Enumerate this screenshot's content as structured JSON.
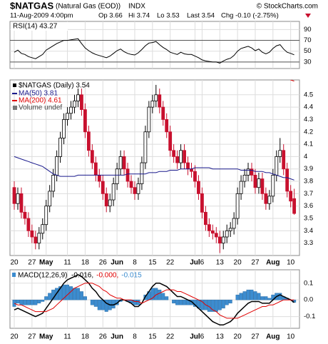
{
  "header": {
    "symbol": "$NATGAS",
    "name": "(Natural Gas (EOD))",
    "exchange": "INDX",
    "credit": "© StockCharts.com",
    "date": "11-Aug-2009 4:00pm",
    "open": "Op 3.66",
    "high": "Hi 3.74",
    "low": "Lo 3.53",
    "last": "Last 3.54",
    "change": "Chg -0.10 (-2.75%)"
  },
  "chart_data": [
    {
      "type": "line",
      "legend": "RSI(14) 43.27",
      "color": "#000000",
      "ylim": [
        18,
        105
      ],
      "yticks": [
        30,
        50,
        70,
        90
      ],
      "reference_lines": [
        30,
        70
      ],
      "values": [
        48,
        52,
        46,
        44,
        40,
        38,
        36,
        40,
        44,
        52,
        56,
        60,
        64,
        67,
        70,
        70,
        71,
        72,
        73,
        64,
        56,
        51,
        47,
        44,
        42,
        40,
        38,
        41,
        46,
        51,
        54,
        49,
        46,
        44,
        43,
        47,
        53,
        60,
        65,
        66,
        68,
        62,
        57,
        53,
        48,
        46,
        44,
        48,
        45,
        44,
        44,
        41,
        38,
        34,
        32,
        31,
        30,
        30,
        28,
        32,
        35,
        37,
        42,
        50,
        55,
        57,
        59,
        56,
        51,
        54,
        48,
        45,
        48,
        55,
        60,
        62,
        54,
        48,
        46,
        43.27
      ]
    },
    {
      "type": "candlestick",
      "legend": [
        "$NATGAS (Daily) 3.54",
        "Volume undef"
      ],
      "color_up": "#000000",
      "color_down": "#c8102e",
      "ylim": [
        3.2,
        4.62
      ],
      "yticks": [
        3.3,
        3.4,
        3.5,
        3.6,
        3.7,
        3.8,
        3.9,
        4.0,
        4.1,
        4.2,
        4.3,
        4.4,
        4.5
      ],
      "categories": [
        "20",
        null,
        null,
        null,
        null,
        "27",
        null,
        null,
        null,
        "May",
        null,
        null,
        null,
        null,
        null,
        "11",
        null,
        null,
        null,
        null,
        "18",
        null,
        null,
        null,
        null,
        "26",
        null,
        null,
        null,
        "Jun",
        null,
        null,
        null,
        null,
        "8",
        null,
        null,
        null,
        null,
        "15",
        null,
        null,
        null,
        null,
        "22",
        null,
        null,
        null,
        null,
        null,
        null,
        "Jul",
        null,
        "6",
        null,
        null,
        null,
        null,
        "13",
        null,
        null,
        null,
        null,
        "20",
        null,
        null,
        null,
        null,
        "27",
        null,
        null,
        null,
        null,
        "Aug",
        null,
        null,
        null,
        null,
        "10",
        null
      ],
      "open": [
        3.75,
        3.62,
        3.7,
        3.55,
        3.5,
        3.4,
        3.35,
        3.3,
        3.38,
        3.45,
        3.6,
        3.72,
        3.85,
        4.0,
        4.15,
        4.3,
        4.35,
        4.4,
        4.45,
        4.5,
        4.38,
        4.2,
        4.05,
        3.95,
        3.85,
        3.8,
        3.7,
        3.6,
        3.65,
        3.78,
        3.9,
        4.0,
        3.9,
        3.8,
        3.75,
        3.7,
        3.78,
        3.95,
        4.2,
        4.4,
        4.45,
        4.5,
        4.4,
        4.3,
        4.2,
        4.05,
        4.0,
        3.95,
        4.05,
        3.95,
        3.9,
        3.88,
        3.8,
        3.7,
        3.55,
        3.45,
        3.4,
        3.38,
        3.35,
        3.3,
        3.35,
        3.4,
        3.42,
        3.5,
        3.7,
        3.8,
        3.85,
        3.9,
        3.85,
        3.75,
        3.82,
        3.7,
        3.62,
        3.68,
        3.85,
        4.0,
        4.05,
        3.9,
        3.72,
        3.66
      ],
      "high": [
        3.8,
        3.75,
        3.75,
        3.6,
        3.55,
        3.45,
        3.4,
        3.43,
        3.5,
        3.65,
        3.77,
        3.9,
        4.05,
        4.2,
        4.35,
        4.4,
        4.45,
        4.5,
        4.55,
        4.55,
        4.43,
        4.25,
        4.1,
        4.0,
        3.9,
        3.85,
        3.75,
        3.7,
        3.83,
        3.95,
        4.05,
        4.05,
        3.95,
        3.85,
        3.8,
        3.83,
        4.0,
        4.25,
        4.45,
        4.5,
        4.58,
        4.55,
        4.45,
        4.35,
        4.25,
        4.1,
        4.05,
        4.1,
        4.1,
        4.0,
        3.95,
        3.93,
        3.85,
        3.75,
        3.6,
        3.5,
        3.45,
        3.43,
        3.4,
        3.4,
        3.45,
        3.47,
        3.55,
        3.75,
        3.85,
        3.9,
        3.95,
        3.95,
        3.9,
        3.87,
        3.87,
        3.75,
        3.73,
        3.9,
        4.05,
        4.15,
        4.1,
        3.95,
        3.77,
        3.74
      ],
      "low": [
        3.57,
        3.57,
        3.5,
        3.45,
        3.35,
        3.3,
        3.25,
        3.25,
        3.33,
        3.4,
        3.55,
        3.67,
        3.8,
        3.95,
        4.1,
        4.25,
        4.3,
        4.35,
        4.4,
        4.33,
        4.15,
        4.0,
        3.9,
        3.8,
        3.75,
        3.65,
        3.55,
        3.55,
        3.6,
        3.73,
        3.85,
        3.85,
        3.75,
        3.7,
        3.65,
        3.65,
        3.73,
        3.9,
        4.15,
        4.35,
        4.4,
        4.35,
        4.25,
        4.15,
        4.0,
        3.95,
        3.9,
        3.9,
        3.9,
        3.85,
        3.83,
        3.75,
        3.65,
        3.5,
        3.4,
        3.35,
        3.33,
        3.3,
        3.22,
        3.25,
        3.3,
        3.35,
        3.37,
        3.45,
        3.65,
        3.75,
        3.8,
        3.8,
        3.7,
        3.7,
        3.65,
        3.57,
        3.57,
        3.63,
        3.8,
        3.95,
        3.85,
        3.67,
        3.59,
        3.53
      ],
      "close": [
        3.62,
        3.7,
        3.55,
        3.5,
        3.4,
        3.35,
        3.3,
        3.38,
        3.45,
        3.6,
        3.72,
        3.85,
        4.0,
        4.15,
        4.3,
        4.35,
        4.4,
        4.45,
        4.5,
        4.38,
        4.2,
        4.05,
        3.95,
        3.85,
        3.8,
        3.7,
        3.6,
        3.65,
        3.78,
        3.9,
        4.0,
        3.9,
        3.8,
        3.75,
        3.7,
        3.78,
        3.95,
        4.2,
        4.4,
        4.45,
        4.5,
        4.4,
        4.3,
        4.2,
        4.05,
        4.0,
        3.95,
        4.05,
        3.95,
        3.9,
        3.88,
        3.8,
        3.7,
        3.55,
        3.45,
        3.4,
        3.38,
        3.35,
        3.3,
        3.35,
        3.4,
        3.42,
        3.5,
        3.7,
        3.8,
        3.85,
        3.9,
        3.85,
        3.75,
        3.82,
        3.7,
        3.62,
        3.68,
        3.85,
        4.0,
        4.05,
        3.9,
        3.72,
        3.64,
        3.54
      ],
      "series": [
        {
          "name": "MA(50) 3.81",
          "color": "#1a1a8c",
          "values": [
            4.0,
            3.99,
            3.98,
            3.97,
            3.96,
            3.95,
            3.94,
            3.93,
            3.92,
            3.9,
            3.88,
            3.86,
            3.85,
            3.84,
            3.84,
            3.84,
            3.84,
            3.84,
            3.85,
            3.85,
            3.85,
            3.85,
            3.85,
            3.85,
            3.85,
            3.85,
            3.85,
            3.85,
            3.85,
            3.85,
            3.85,
            3.85,
            3.86,
            3.86,
            3.86,
            3.86,
            3.86,
            3.86,
            3.87,
            3.87,
            3.87,
            3.88,
            3.88,
            3.88,
            3.89,
            3.89,
            3.89,
            3.9,
            3.9,
            3.9,
            3.9,
            3.91,
            3.91,
            3.91,
            3.91,
            3.91,
            3.9,
            3.9,
            3.9,
            3.9,
            3.9,
            3.9,
            3.9,
            3.9,
            3.89,
            3.89,
            3.89,
            3.89,
            3.88,
            3.88,
            3.88,
            3.87,
            3.87,
            3.86,
            3.85,
            3.84,
            3.83,
            3.83,
            3.82,
            3.81
          ]
        },
        {
          "name": "MA(200) 4.61",
          "color": "#e00000",
          "values": [
            null,
            null,
            null,
            null,
            null,
            null,
            null,
            null,
            null,
            null,
            null,
            null,
            null,
            null,
            null,
            null,
            null,
            null,
            null,
            null,
            null,
            null,
            null,
            null,
            null,
            null,
            null,
            null,
            null,
            null,
            null,
            null,
            null,
            null,
            null,
            null,
            null,
            null,
            null,
            null,
            null,
            null,
            null,
            null,
            null,
            null,
            null,
            null,
            null,
            null,
            null,
            null,
            null,
            null,
            null,
            null,
            null,
            null,
            null,
            null,
            null,
            null,
            null,
            null,
            null,
            null,
            null,
            null,
            null,
            null,
            null,
            null,
            null,
            null,
            null,
            null,
            4.66,
            4.64,
            4.62,
            4.61
          ]
        }
      ]
    },
    {
      "type": "macd",
      "legend": "MACD(12,26,9)",
      "ylim": [
        -0.17,
        0.18
      ],
      "yticks": [
        0.1,
        {
          "value": 0,
          "label": "0.0"
        },
        -0.1
      ],
      "series": [
        {
          "name": "-0.016,",
          "color": "#000000",
          "style": "line",
          "values": [
            -0.06,
            -0.05,
            -0.06,
            -0.07,
            -0.08,
            -0.09,
            -0.1,
            -0.09,
            -0.08,
            -0.05,
            -0.02,
            0.01,
            0.04,
            0.07,
            0.1,
            0.12,
            0.13,
            0.14,
            0.15,
            0.14,
            0.12,
            0.1,
            0.07,
            0.05,
            0.02,
            0.0,
            -0.02,
            -0.03,
            -0.03,
            -0.02,
            0.0,
            0.0,
            -0.01,
            -0.02,
            -0.04,
            -0.04,
            -0.02,
            0.02,
            0.05,
            0.08,
            0.1,
            0.1,
            0.09,
            0.08,
            0.06,
            0.04,
            0.02,
            0.02,
            0.01,
            0.0,
            -0.01,
            -0.03,
            -0.05,
            -0.07,
            -0.09,
            -0.11,
            -0.13,
            -0.14,
            -0.15,
            -0.15,
            -0.14,
            -0.13,
            -0.11,
            -0.08,
            -0.06,
            -0.04,
            -0.02,
            -0.01,
            -0.01,
            -0.01,
            -0.02,
            -0.02,
            -0.02,
            0.0,
            0.02,
            0.03,
            0.02,
            0.01,
            0.0,
            -0.016
          ]
        },
        {
          "name": "-0.000,",
          "color": "#e00000",
          "style": "line",
          "values": [
            -0.02,
            -0.03,
            -0.03,
            -0.04,
            -0.05,
            -0.06,
            -0.07,
            -0.07,
            -0.07,
            -0.07,
            -0.06,
            -0.05,
            -0.03,
            -0.01,
            0.01,
            0.03,
            0.05,
            0.07,
            0.08,
            0.09,
            0.1,
            0.1,
            0.1,
            0.09,
            0.08,
            0.06,
            0.05,
            0.03,
            0.02,
            0.01,
            0.01,
            0.0,
            0.0,
            0.0,
            -0.01,
            -0.01,
            -0.02,
            -0.01,
            0.0,
            0.01,
            0.03,
            0.04,
            0.05,
            0.06,
            0.06,
            0.06,
            0.05,
            0.05,
            0.04,
            0.03,
            0.02,
            0.01,
            0.0,
            -0.01,
            -0.03,
            -0.04,
            -0.06,
            -0.07,
            -0.09,
            -0.1,
            -0.11,
            -0.11,
            -0.11,
            -0.11,
            -0.1,
            -0.09,
            -0.08,
            -0.07,
            -0.06,
            -0.05,
            -0.04,
            -0.04,
            -0.03,
            -0.03,
            -0.02,
            -0.01,
            0.0,
            0.0,
            0.0,
            0
          ]
        },
        {
          "name": "-0.015",
          "color": "#3c8ccf",
          "style": "bar",
          "values": [
            -0.04,
            -0.02,
            -0.03,
            -0.03,
            -0.03,
            -0.03,
            -0.03,
            -0.02,
            -0.01,
            0.02,
            0.04,
            0.06,
            0.07,
            0.08,
            0.09,
            0.09,
            0.08,
            0.07,
            0.07,
            0.05,
            0.02,
            0.0,
            -0.03,
            -0.04,
            -0.06,
            -0.06,
            -0.07,
            -0.06,
            -0.05,
            -0.03,
            -0.01,
            0.0,
            -0.01,
            -0.02,
            -0.03,
            -0.03,
            0.0,
            0.03,
            0.05,
            0.07,
            0.07,
            0.06,
            0.04,
            0.02,
            0.0,
            -0.02,
            -0.03,
            -0.03,
            -0.03,
            -0.03,
            -0.03,
            -0.04,
            -0.05,
            -0.06,
            -0.06,
            -0.07,
            -0.07,
            -0.07,
            -0.06,
            -0.05,
            -0.03,
            -0.02,
            0.0,
            0.03,
            0.04,
            0.05,
            0.06,
            0.06,
            0.05,
            0.04,
            0.02,
            0.02,
            0.01,
            0.03,
            0.04,
            0.04,
            0.02,
            0.01,
            0.0,
            -0.015
          ]
        }
      ]
    }
  ]
}
